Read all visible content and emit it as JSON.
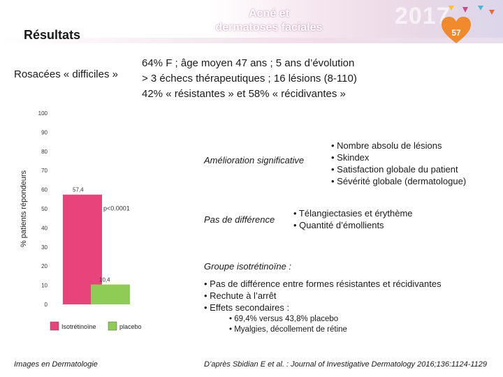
{
  "header": {
    "title_line1": "Acné et",
    "title_line2": "dermatoses faciales",
    "year": "2017",
    "slide_number": "57"
  },
  "section_title": "Résultats",
  "intro": {
    "label": "Rosacées « difficiles »",
    "lines": [
      "64% F ; âge moyen 47 ans ; 5 ans d’évolution",
      "> 3 échecs thérapeutiques ; 16 lésions (8-110)",
      "42% « résistantes » et 58% « récidivantes »"
    ]
  },
  "improvement": {
    "label": "Amélioration significative",
    "items": [
      "• Nombre absolu de lésions",
      "• Skindex",
      "• Satisfaction globale du patient",
      "• Sévérité globale (dermatologue)"
    ]
  },
  "no_difference": {
    "label": "Pas de différence",
    "items": [
      "• Télangiectasies et érythème",
      "• Quantité d’émollients"
    ]
  },
  "isotretinoin_group": {
    "title": "Groupe isotrétinoïne :",
    "items": [
      "• Pas de différence entre formes résistantes et récidivantes",
      "• Rechute à l’arrêt",
      "• Effets secondaires :"
    ],
    "sub_items": [
      "• 69,4% versus 43,8% placebo",
      "• Myalgies, décollement de rétine"
    ]
  },
  "footer": {
    "left": "Images en Dermatologie",
    "right": "D’après Sbidian E et al. : Journal of Investigative Dermatology 2016;136:1124-1129"
  },
  "chart_data": {
    "type": "bar",
    "categories": [
      "Isotrétinoïne",
      "placebo"
    ],
    "values": [
      57.4,
      10.4
    ],
    "value_labels": [
      "57,4",
      "10,4"
    ],
    "colors": [
      "#e8437a",
      "#8fcc55"
    ],
    "ylabel": "% patients répondeurs",
    "ylim": [
      0,
      100
    ],
    "yticks": [
      0,
      10,
      20,
      30,
      40,
      50,
      60,
      70,
      80,
      90,
      100
    ],
    "annotation": "p<0.0001",
    "legend": [
      "Isotrétinoïne",
      "placebo"
    ],
    "legend_placement": "bottom"
  }
}
